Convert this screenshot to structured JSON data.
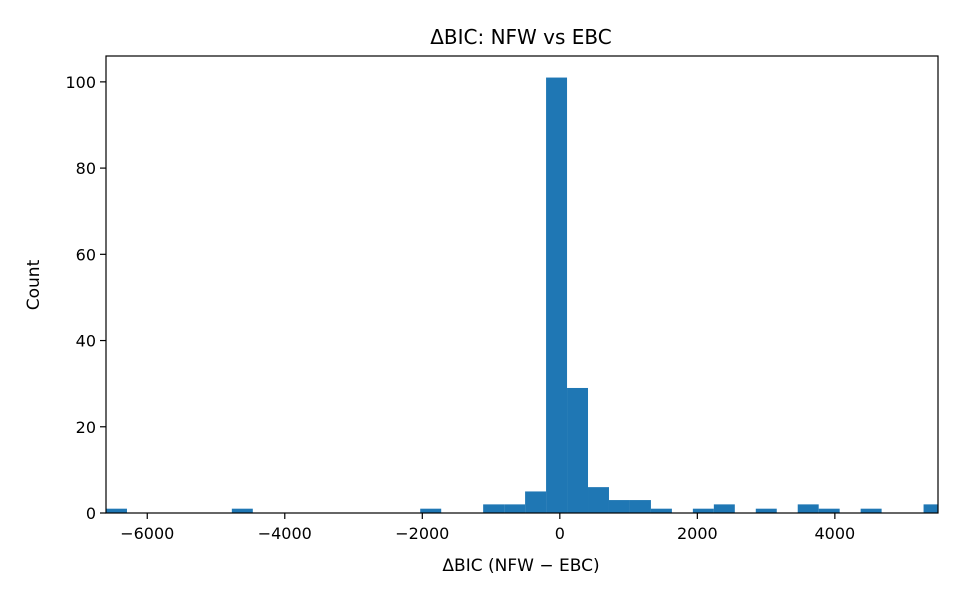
{
  "chart_data": {
    "type": "bar",
    "title": "ΔBIC: NFW vs EBC",
    "xlabel": "ΔBIC (NFW − EBC)",
    "ylabel": "Count",
    "xlim": [
      -6600,
      5500
    ],
    "ylim": [
      0,
      106
    ],
    "xticks": [
      -6000,
      -4000,
      -2000,
      0,
      2000,
      4000
    ],
    "xtick_labels": [
      "−6000",
      "−4000",
      "−2000",
      "0",
      "2000",
      "4000"
    ],
    "yticks": [
      0,
      20,
      40,
      60,
      80,
      100
    ],
    "ytick_labels": [
      "0",
      "20",
      "40",
      "60",
      "80",
      "100"
    ],
    "color": "#1f77b4",
    "grid": false,
    "legend": "none",
    "bins": [
      {
        "x0": -6600,
        "x1": -6295,
        "count": 1
      },
      {
        "x0": -4770,
        "x1": -4465,
        "count": 1
      },
      {
        "x0": -2030,
        "x1": -1725,
        "count": 1
      },
      {
        "x0": -1115,
        "x1": -810,
        "count": 2
      },
      {
        "x0": -810,
        "x1": -505,
        "count": 2
      },
      {
        "x0": -505,
        "x1": -200,
        "count": 5
      },
      {
        "x0": -200,
        "x1": 105,
        "count": 101
      },
      {
        "x0": 105,
        "x1": 410,
        "count": 29
      },
      {
        "x0": 410,
        "x1": 715,
        "count": 6
      },
      {
        "x0": 715,
        "x1": 1020,
        "count": 3
      },
      {
        "x0": 1020,
        "x1": 1325,
        "count": 3
      },
      {
        "x0": 1325,
        "x1": 1630,
        "count": 1
      },
      {
        "x0": 1935,
        "x1": 2240,
        "count": 1
      },
      {
        "x0": 2240,
        "x1": 2545,
        "count": 2
      },
      {
        "x0": 2850,
        "x1": 3155,
        "count": 1
      },
      {
        "x0": 3460,
        "x1": 3765,
        "count": 2
      },
      {
        "x0": 3765,
        "x1": 4070,
        "count": 1
      },
      {
        "x0": 4375,
        "x1": 4680,
        "count": 1
      },
      {
        "x0": 5290,
        "x1": 5595,
        "count": 2
      }
    ]
  }
}
